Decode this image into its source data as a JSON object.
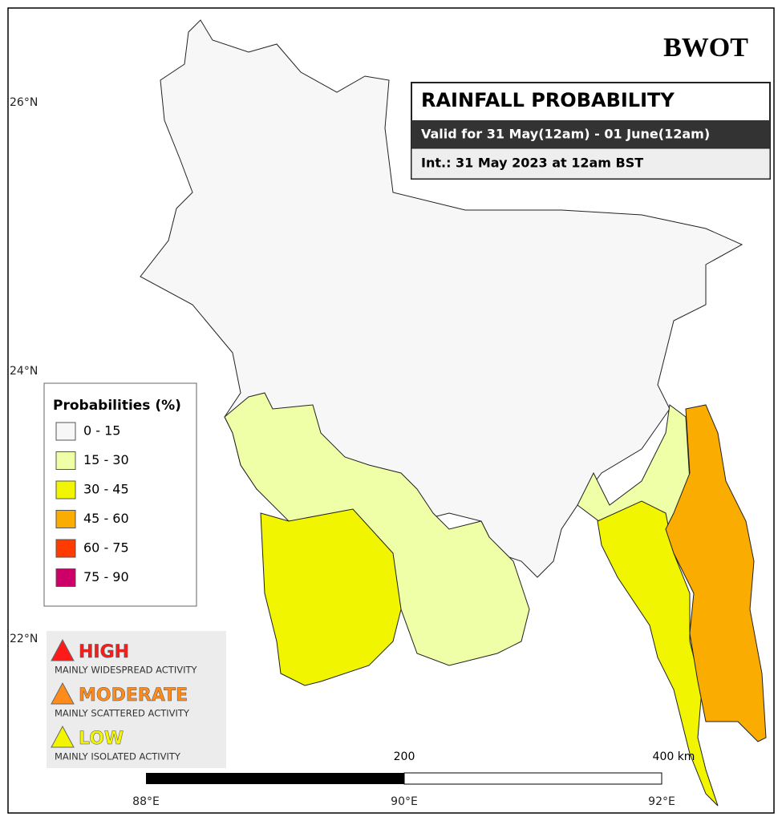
{
  "logo": "BWOT",
  "header": {
    "title": "RAINFALL PROBABILITY",
    "valid": "Valid for 31 May(12am) - 01 June(12am)",
    "issued": "Int.: 31 May 2023 at 12am BST"
  },
  "axes": {
    "lat": [
      "26°N",
      "24°N",
      "22°N"
    ],
    "lon": [
      "88°E",
      "90°E",
      "92°E"
    ]
  },
  "legend": {
    "title": "Probabilities (%)",
    "items": [
      {
        "label": "0 - 15",
        "color": "#f7f7f7"
      },
      {
        "label": "15 - 30",
        "color": "#eeffa8"
      },
      {
        "label": "30 - 45",
        "color": "#f2f500"
      },
      {
        "label": "45 - 60",
        "color": "#fbac00"
      },
      {
        "label": "60 - 75",
        "color": "#ff3b00"
      },
      {
        "label": "75 - 90",
        "color": "#cc0066"
      }
    ]
  },
  "alerts": [
    {
      "level": "HIGH",
      "text": "MAINLY WIDESPREAD ACTIVITY",
      "color": "#ff1a1a"
    },
    {
      "level": "MODERATE",
      "text": "MAINLY SCATTERED ACTIVITY",
      "color": "#ff8c1a"
    },
    {
      "level": "LOW",
      "text": "MAINLY ISOLATED ACTIVITY",
      "color": "#f2f500"
    }
  ],
  "scale_bar": {
    "mid": "200",
    "end": "400 km"
  }
}
